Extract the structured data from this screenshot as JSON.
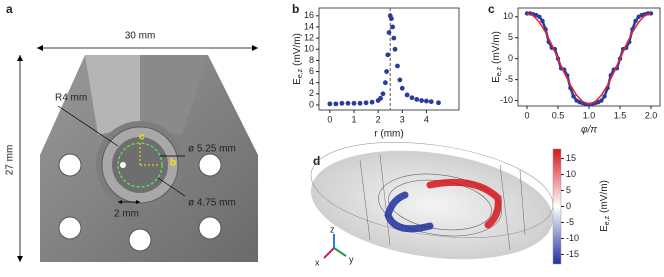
{
  "panel_labels": [
    "a",
    "b",
    "c",
    "d"
  ],
  "figure_a": {
    "width": "30 mm",
    "height": "27 mm",
    "radius": "R4 mm",
    "diameter_outer": "ø 5.25 mm",
    "diameter_inner": "ø 4.75 mm",
    "spacing": "2 mm",
    "marker_c": "c",
    "marker_b": "b"
  },
  "chart_data": [
    {
      "type": "scatter",
      "color": "#2b3a9e",
      "xlabel": "r (mm)",
      "ylabel": {
        "symbol": "E",
        "subscript": "e,z",
        "unit": "(mV/m)"
      },
      "x": [
        0,
        0.25,
        0.5,
        0.75,
        1,
        1.25,
        1.5,
        1.75,
        2,
        2.1,
        2.2,
        2.3,
        2.35,
        2.4,
        2.45,
        2.5,
        2.55,
        2.6,
        2.65,
        2.7,
        2.8,
        2.9,
        3,
        3.2,
        3.4,
        3.6,
        3.8,
        4,
        4.2,
        4.5
      ],
      "values": [
        0.2,
        0.2,
        0.3,
        0.3,
        0.3,
        0.3,
        0.4,
        0.5,
        0.8,
        1.2,
        2,
        4,
        6,
        9,
        13,
        16,
        15.5,
        14,
        12,
        10,
        7,
        4.5,
        3,
        1.8,
        1.3,
        1,
        0.8,
        0.7,
        0.6,
        0.4
      ],
      "vline": 2.5,
      "xlim": [
        -0.45,
        5.35
      ],
      "ylim": [
        -0.9,
        17.4
      ],
      "xticks": [
        0,
        1,
        2,
        3,
        4
      ],
      "yticks": [
        0,
        2,
        4,
        6,
        8,
        10,
        12,
        14,
        16
      ]
    },
    {
      "type": "line",
      "xlabel": "φ/π",
      "ylabel": {
        "symbol": "E",
        "subscript": "e,z",
        "unit": "(mV/m)"
      },
      "series": [
        {
          "color": "#2b3a9e",
          "markers": true,
          "x": [
            0,
            0.05,
            0.1,
            0.15,
            0.2,
            0.25,
            0.3,
            0.35,
            0.4,
            0.45,
            0.5,
            0.55,
            0.6,
            0.65,
            0.7,
            0.75,
            0.8,
            0.85,
            0.9,
            0.95,
            1,
            1.05,
            1.1,
            1.15,
            1.2,
            1.25,
            1.3,
            1.35,
            1.4,
            1.45,
            1.5,
            1.55,
            1.6,
            1.65,
            1.7,
            1.75,
            1.8,
            1.85,
            1.9,
            1.95,
            2
          ],
          "values": [
            10.8,
            10.8,
            10.6,
            10.4,
            10,
            9,
            7,
            4,
            2.6,
            2.3,
            0,
            -2.3,
            -2.6,
            -4,
            -7,
            -9,
            -10,
            -10.4,
            -10.6,
            -10.9,
            -11,
            -10.9,
            -10.6,
            -10.4,
            -10,
            -9,
            -7,
            -4,
            -2.6,
            -2.3,
            0,
            2.3,
            2.6,
            4,
            7,
            9,
            10,
            10.4,
            10.6,
            10.8,
            10.8
          ]
        },
        {
          "color": "#e8262b",
          "markers": false,
          "x": [
            0,
            0.1,
            0.2,
            0.3,
            0.4,
            0.5,
            0.6,
            0.7,
            0.8,
            0.9,
            1,
            1.1,
            1.2,
            1.3,
            1.4,
            1.5,
            1.6,
            1.7,
            1.8,
            1.9,
            2
          ],
          "values": [
            10.8,
            10.3,
            8.7,
            6.3,
            3.3,
            0,
            -3.3,
            -6.3,
            -8.7,
            -10.3,
            -10.8,
            -10.3,
            -8.7,
            -6.3,
            -3.3,
            0,
            3.3,
            6.3,
            8.7,
            10.3,
            10.8
          ]
        }
      ],
      "xlim": [
        -0.145,
        2.145
      ],
      "ylim": [
        -11.3,
        12.1
      ],
      "xticks": [
        0,
        0.5,
        {
          "value": 1,
          "label": "1.0"
        },
        1.5,
        {
          "value": 2,
          "label": "2.0"
        }
      ],
      "yticks": [
        -10,
        -5,
        0,
        5,
        10
      ]
    }
  ],
  "figure_d": {
    "axes": [
      "z",
      "x",
      "y"
    ],
    "colorbar": {
      "label": {
        "symbol": "E",
        "subscript": "e,z",
        "unit": "(mV/m)"
      },
      "colors": [
        "#1f2f9e",
        "#ffffff",
        "#d7141c"
      ],
      "lim": [
        -18,
        18
      ],
      "ticks": [
        15,
        10,
        5,
        0,
        -5,
        -10,
        -15
      ]
    }
  }
}
